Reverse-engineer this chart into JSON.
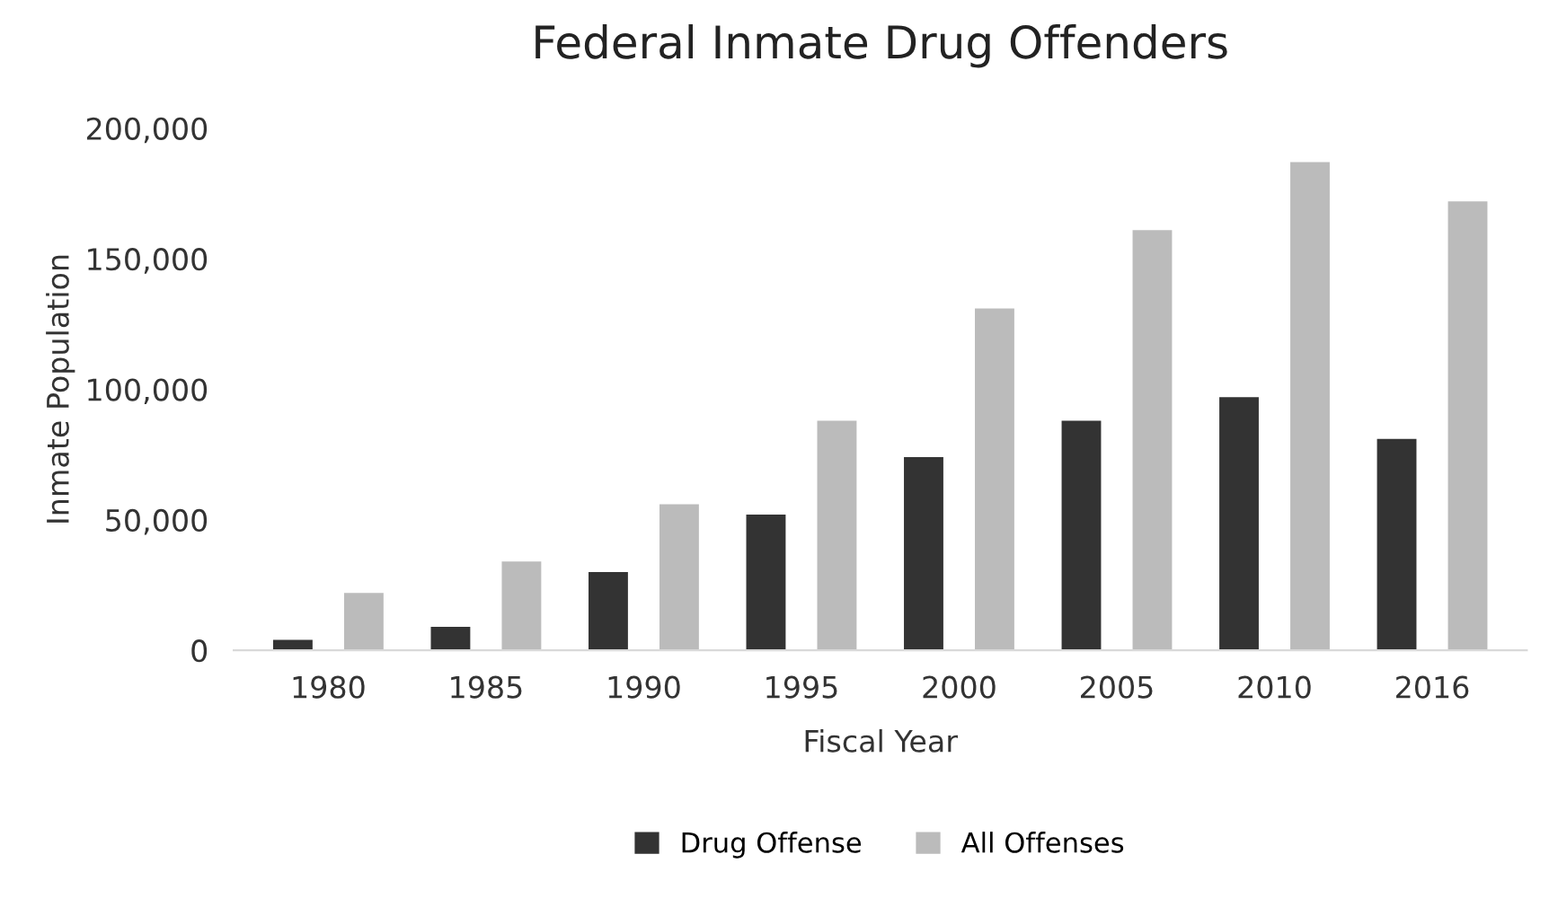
{
  "chart_data": {
    "type": "bar",
    "title": "Federal Inmate Drug Offenders",
    "xlabel": "Fiscal Year",
    "ylabel": "Inmate Population",
    "categories": [
      "1980",
      "1985",
      "1990",
      "1995",
      "2000",
      "2005",
      "2010",
      "2016"
    ],
    "series": [
      {
        "name": "Drug Offense",
        "color": "#333333",
        "values": [
          4000,
          9000,
          30000,
          52000,
          74000,
          88000,
          97000,
          81000
        ]
      },
      {
        "name": "All Offenses",
        "color": "#bbbbbb",
        "values": [
          22000,
          34000,
          56000,
          88000,
          131000,
          161000,
          187000,
          172000
        ]
      }
    ],
    "ylim": [
      0,
      200000
    ],
    "yticks": [
      {
        "value": 0,
        "label": "0"
      },
      {
        "value": 50000,
        "label": "50,000"
      },
      {
        "value": 100000,
        "label": "100,000"
      },
      {
        "value": 150000,
        "label": "150,000"
      },
      {
        "value": 200000,
        "label": "200,000"
      }
    ],
    "grid": false,
    "legend": "bottom"
  }
}
